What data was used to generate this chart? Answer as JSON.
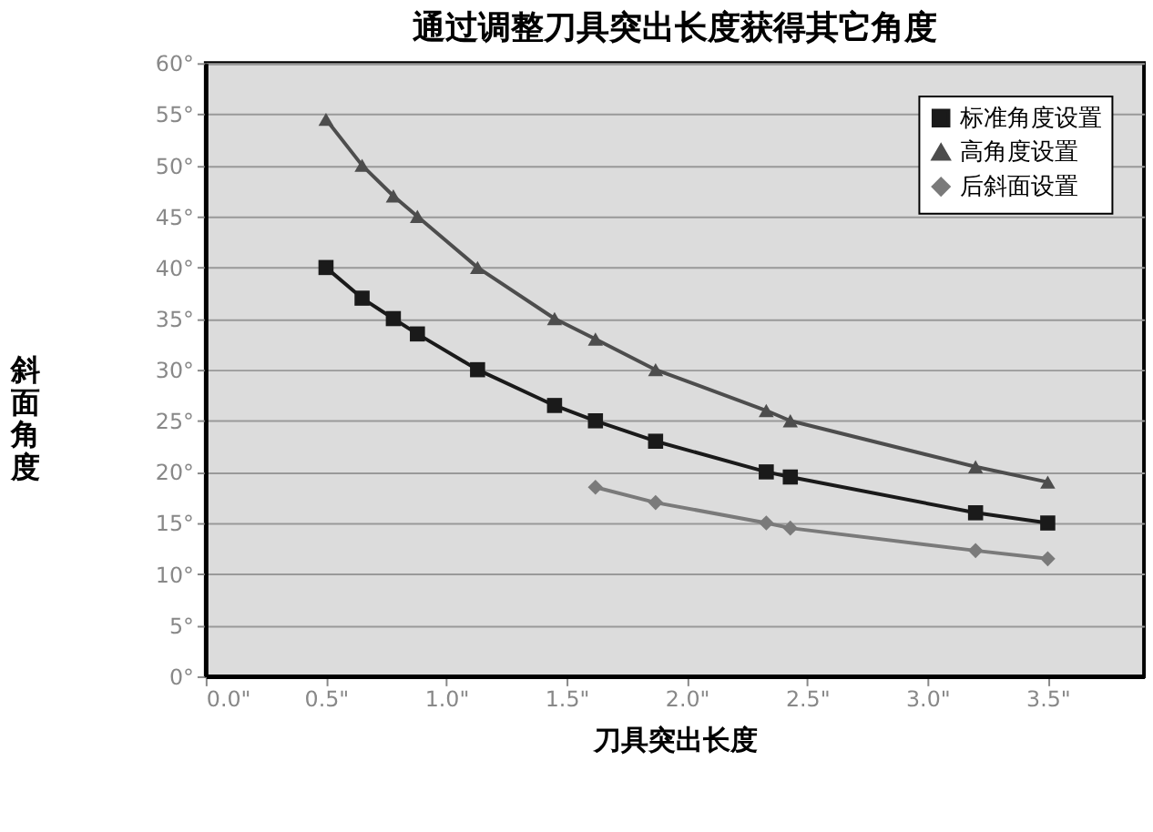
{
  "chart_data": {
    "type": "line",
    "title": "通过调整刀具突出长度获得其它角度",
    "xlabel": "刀具突出长度",
    "ylabel": "斜面角度",
    "xlim": [
      0,
      3.9
    ],
    "ylim": [
      0,
      60
    ],
    "xticks": [
      {
        "value": 0,
        "label": "0.0\""
      },
      {
        "value": 0.5,
        "label": "0.5\""
      },
      {
        "value": 1,
        "label": "1.0\""
      },
      {
        "value": 1.5,
        "label": "1.5\""
      },
      {
        "value": 2,
        "label": "2.0\""
      },
      {
        "value": 2.5,
        "label": "2.5\""
      },
      {
        "value": 3,
        "label": "3.0\""
      },
      {
        "value": 3.5,
        "label": "3.5\""
      }
    ],
    "yticks": [
      {
        "value": 0,
        "label": "0°"
      },
      {
        "value": 5,
        "label": "5°"
      },
      {
        "value": 10,
        "label": "10°"
      },
      {
        "value": 15,
        "label": "15°"
      },
      {
        "value": 20,
        "label": "20°"
      },
      {
        "value": 25,
        "label": "25°"
      },
      {
        "value": 30,
        "label": "30°"
      },
      {
        "value": 35,
        "label": "35°"
      },
      {
        "value": 40,
        "label": "40°"
      },
      {
        "value": 45,
        "label": "45°"
      },
      {
        "value": 50,
        "label": "50°"
      },
      {
        "value": 55,
        "label": "55°"
      },
      {
        "value": 60,
        "label": "60°"
      }
    ],
    "grid": "y",
    "legend": "top right",
    "line_style": "solid",
    "series": [
      {
        "name": "标准角度设置",
        "color": "#1a1a1a",
        "marker": "square",
        "x": [
          0.5,
          0.65,
          0.78,
          0.88,
          1.13,
          1.45,
          1.62,
          1.87,
          2.33,
          2.43,
          3.2,
          3.5
        ],
        "values": [
          40,
          37,
          35,
          33.5,
          30,
          26.5,
          25,
          23,
          20,
          19.5,
          16,
          15
        ]
      },
      {
        "name": "高角度设置",
        "color": "#4d4d4d",
        "marker": "triangle",
        "x": [
          0.5,
          0.65,
          0.78,
          0.88,
          1.13,
          1.45,
          1.62,
          1.87,
          2.33,
          2.43,
          3.2,
          3.5
        ],
        "values": [
          54.5,
          50,
          47,
          45,
          40,
          35,
          33,
          30,
          26,
          25,
          20.5,
          19
        ]
      },
      {
        "name": "后斜面设置",
        "color": "#7a7a7a",
        "marker": "diamond",
        "x": [
          1.62,
          1.87,
          2.33,
          2.43,
          3.2,
          3.5
        ],
        "values": [
          18.5,
          17,
          15,
          14.5,
          12.3,
          11.5
        ]
      }
    ]
  }
}
